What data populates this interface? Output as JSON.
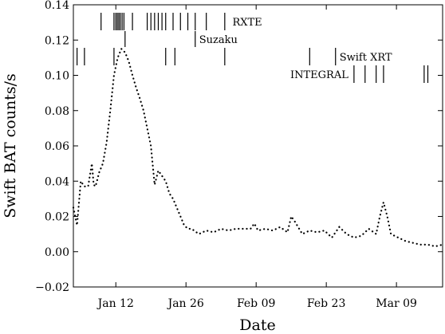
{
  "chart_data": {
    "type": "line",
    "title": "",
    "xlabel": "Date",
    "ylabel": "Swift BAT counts/s",
    "xlim": [
      0,
      100
    ],
    "ylim": [
      -0.02,
      0.14
    ],
    "yticks": [
      {
        "value": -0.02,
        "label": "−0.02"
      },
      {
        "value": 0.0,
        "label": "0.00"
      },
      {
        "value": 0.02,
        "label": "0.02"
      },
      {
        "value": 0.04,
        "label": "0.04"
      },
      {
        "value": 0.06,
        "label": "0.06"
      },
      {
        "value": 0.08,
        "label": "0.08"
      },
      {
        "value": 0.1,
        "label": "0.10"
      },
      {
        "value": 0.12,
        "label": "0.12"
      },
      {
        "value": 0.14,
        "label": "0.14"
      }
    ],
    "xticks": [
      {
        "value": 11.5,
        "label": "Jan 12"
      },
      {
        "value": 30.5,
        "label": "Jan 26"
      },
      {
        "value": 49.5,
        "label": "Feb 09"
      },
      {
        "value": 68.5,
        "label": "Feb 23"
      },
      {
        "value": 87.5,
        "label": "Mar 09"
      }
    ],
    "series": [
      {
        "name": "",
        "style": "dotted",
        "x": [
          0,
          1,
          2,
          3,
          4,
          5,
          5.5,
          6,
          7,
          8,
          9,
          10,
          11,
          12,
          13,
          14,
          15,
          16,
          17,
          18,
          19,
          20,
          21,
          22,
          23,
          24,
          25,
          26,
          27,
          28,
          29,
          30,
          31,
          32,
          34,
          36,
          38,
          40,
          42,
          44,
          46,
          48,
          49,
          50,
          52,
          54,
          56,
          58,
          59,
          60,
          62,
          64,
          66,
          68,
          70,
          72,
          74,
          76,
          78,
          80,
          82,
          83,
          84,
          85,
          86,
          88,
          90,
          92,
          94,
          96,
          98,
          100
        ],
        "y": [
          0.025,
          0.015,
          0.04,
          0.037,
          0.037,
          0.05,
          0.038,
          0.037,
          0.045,
          0.05,
          0.062,
          0.08,
          0.1,
          0.11,
          0.115,
          0.113,
          0.108,
          0.1,
          0.093,
          0.087,
          0.08,
          0.07,
          0.06,
          0.038,
          0.046,
          0.043,
          0.04,
          0.033,
          0.03,
          0.025,
          0.02,
          0.015,
          0.013,
          0.013,
          0.01,
          0.012,
          0.011,
          0.013,
          0.012,
          0.013,
          0.013,
          0.013,
          0.016,
          0.012,
          0.013,
          0.012,
          0.014,
          0.011,
          0.02,
          0.017,
          0.01,
          0.012,
          0.011,
          0.012,
          0.008,
          0.014,
          0.01,
          0.008,
          0.009,
          0.013,
          0.01,
          0.02,
          0.028,
          0.02,
          0.01,
          0.008,
          0.006,
          0.005,
          0.004,
          0.004,
          0.003,
          0.004
        ]
      }
    ],
    "grid": false,
    "legend": "none",
    "observations": [
      {
        "name": "RXTE",
        "row": 1,
        "label_after_x": 42,
        "x": [
          7.5,
          11,
          11.5,
          11.9,
          12.3,
          12.7,
          13.2,
          13.7,
          16,
          20,
          21,
          22,
          23,
          24,
          25,
          27,
          29,
          31,
          33,
          36,
          41
        ]
      },
      {
        "name": "Suzaku",
        "row": 2,
        "label_after_x": 33,
        "x": [
          14,
          33
        ]
      },
      {
        "name": "Swift XRT",
        "row": 3,
        "label_after_x": 71,
        "x": [
          1,
          3,
          11,
          25,
          27.5,
          41,
          64,
          71
        ]
      },
      {
        "name": "INTEGRAL",
        "row": 4,
        "label_after_x": null,
        "label_before_x": 76,
        "x": [
          76,
          79,
          82,
          84,
          95,
          96
        ]
      }
    ]
  }
}
